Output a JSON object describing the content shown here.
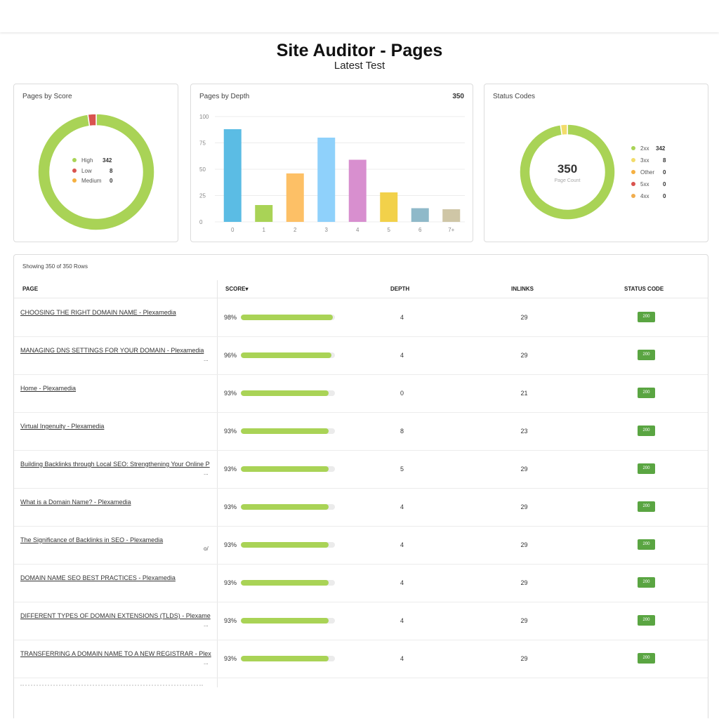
{
  "header": {
    "title": "Site Auditor - Pages",
    "subtitle": "Latest Test"
  },
  "score_card": {
    "title": "Pages by Score",
    "legend": [
      {
        "label": "High",
        "value": "342",
        "color": "#a9d356"
      },
      {
        "label": "Low",
        "value": "8",
        "color": "#d9534f"
      },
      {
        "label": "Medium",
        "value": "0",
        "color": "#f5b041"
      }
    ]
  },
  "depth_card": {
    "title": "Pages by Depth",
    "count": "350"
  },
  "status_card": {
    "title": "Status Codes",
    "center_value": "350",
    "center_label": "Page Count",
    "legend": [
      {
        "label": "2xx",
        "value": "342",
        "color": "#a9d356"
      },
      {
        "label": "3xx",
        "value": "8",
        "color": "#f2dc6b"
      },
      {
        "label": "Other",
        "value": "0",
        "color": "#f5b041"
      },
      {
        "label": "5xx",
        "value": "0",
        "color": "#d9534f"
      },
      {
        "label": "4xx",
        "value": "0",
        "color": "#f0ad4e"
      }
    ]
  },
  "chart_data": [
    {
      "type": "pie",
      "title": "Pages by Score",
      "categories": [
        "High",
        "Low",
        "Medium"
      ],
      "values": [
        342,
        8,
        0
      ],
      "colors": [
        "#a9d356",
        "#d9534f",
        "#f5b041"
      ]
    },
    {
      "type": "bar",
      "title": "Pages by Depth",
      "categories": [
        "0",
        "1",
        "2",
        "3",
        "4",
        "5",
        "6",
        "7+"
      ],
      "values": [
        88,
        16,
        46,
        80,
        59,
        28,
        13,
        12
      ],
      "colors": [
        "#5bbce4",
        "#a9d356",
        "#fdc066",
        "#8fd1fb",
        "#d88fcf",
        "#f2d14a",
        "#8fb9c9",
        "#cfc6a6"
      ],
      "yticks": [
        "0",
        "25",
        "50",
        "75",
        "100"
      ],
      "ylim": [
        0,
        100
      ],
      "grid": true
    },
    {
      "type": "pie",
      "title": "Status Codes",
      "categories": [
        "2xx",
        "3xx",
        "Other",
        "5xx",
        "4xx"
      ],
      "values": [
        342,
        8,
        0,
        0,
        0
      ],
      "colors": [
        "#a9d356",
        "#f2dc6b",
        "#f5b041",
        "#d9534f",
        "#f0ad4e"
      ]
    }
  ],
  "table": {
    "showing": "Showing 350 of 350 Rows",
    "columns": {
      "page": "PAGE",
      "score": "SCORE▾",
      "depth": "DEPTH",
      "inlinks": "INLINKS",
      "status": "STATUS CODE"
    },
    "rows": [
      {
        "page": "CHOOSING THE RIGHT DOMAIN NAME - Plexamedia",
        "ellipsis": "",
        "score": "98%",
        "score_value": 98,
        "depth": "4",
        "inlinks": "29",
        "status": "200"
      },
      {
        "page": "MANAGING DNS SETTINGS FOR YOUR DOMAIN - Plexamedia",
        "ellipsis": "...",
        "score": "96%",
        "score_value": 96,
        "depth": "4",
        "inlinks": "29",
        "status": "200"
      },
      {
        "page": "Home - Plexamedia",
        "ellipsis": "",
        "score": "93%",
        "score_value": 93,
        "depth": "0",
        "inlinks": "21",
        "status": "200"
      },
      {
        "page": "Virtual Ingenuity - Plexamedia",
        "ellipsis": "",
        "score": "93%",
        "score_value": 93,
        "depth": "8",
        "inlinks": "23",
        "status": "200"
      },
      {
        "page": "Building Backlinks through Local SEO: Strengthening Your Online P",
        "ellipsis": "...",
        "score": "93%",
        "score_value": 93,
        "depth": "5",
        "inlinks": "29",
        "status": "200"
      },
      {
        "page": "What is a Domain Name? - Plexamedia",
        "ellipsis": "",
        "score": "93%",
        "score_value": 93,
        "depth": "4",
        "inlinks": "29",
        "status": "200"
      },
      {
        "page": "The Significance of Backlinks in SEO - Plexamedia",
        "ellipsis": "o/",
        "score": "93%",
        "score_value": 93,
        "depth": "4",
        "inlinks": "29",
        "status": "200"
      },
      {
        "page": "DOMAIN NAME SEO BEST PRACTICES - Plexamedia",
        "ellipsis": "",
        "score": "93%",
        "score_value": 93,
        "depth": "4",
        "inlinks": "29",
        "status": "200"
      },
      {
        "page": "DIFFERENT TYPES OF DOMAIN EXTENSIONS (TLDS) - Plexame",
        "ellipsis": "...",
        "score": "93%",
        "score_value": 93,
        "depth": "4",
        "inlinks": "29",
        "status": "200"
      },
      {
        "page": "TRANSFERRING A DOMAIN NAME TO A NEW REGISTRAR - Plex",
        "ellipsis": "...",
        "score": "93%",
        "score_value": 93,
        "depth": "4",
        "inlinks": "29",
        "status": "200"
      }
    ]
  }
}
